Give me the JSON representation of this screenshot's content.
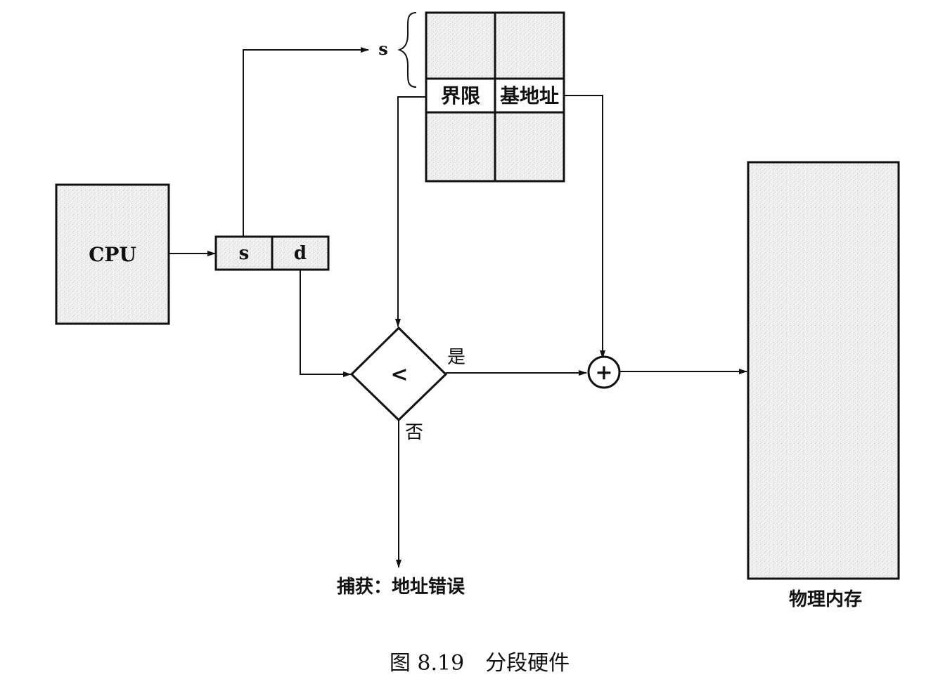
{
  "cpu_label": "CPU",
  "address": {
    "segment": "s",
    "offset": "d"
  },
  "segment_table": {
    "index_label": "s",
    "limit_label": "界限",
    "base_label": "基地址"
  },
  "comparator": {
    "operator": "<",
    "yes_label": "是",
    "no_label": "否"
  },
  "adder_symbol": "+",
  "trap_label": "捕获：地址错误",
  "memory_label": "物理内存",
  "caption": "图 8.19　分段硬件"
}
